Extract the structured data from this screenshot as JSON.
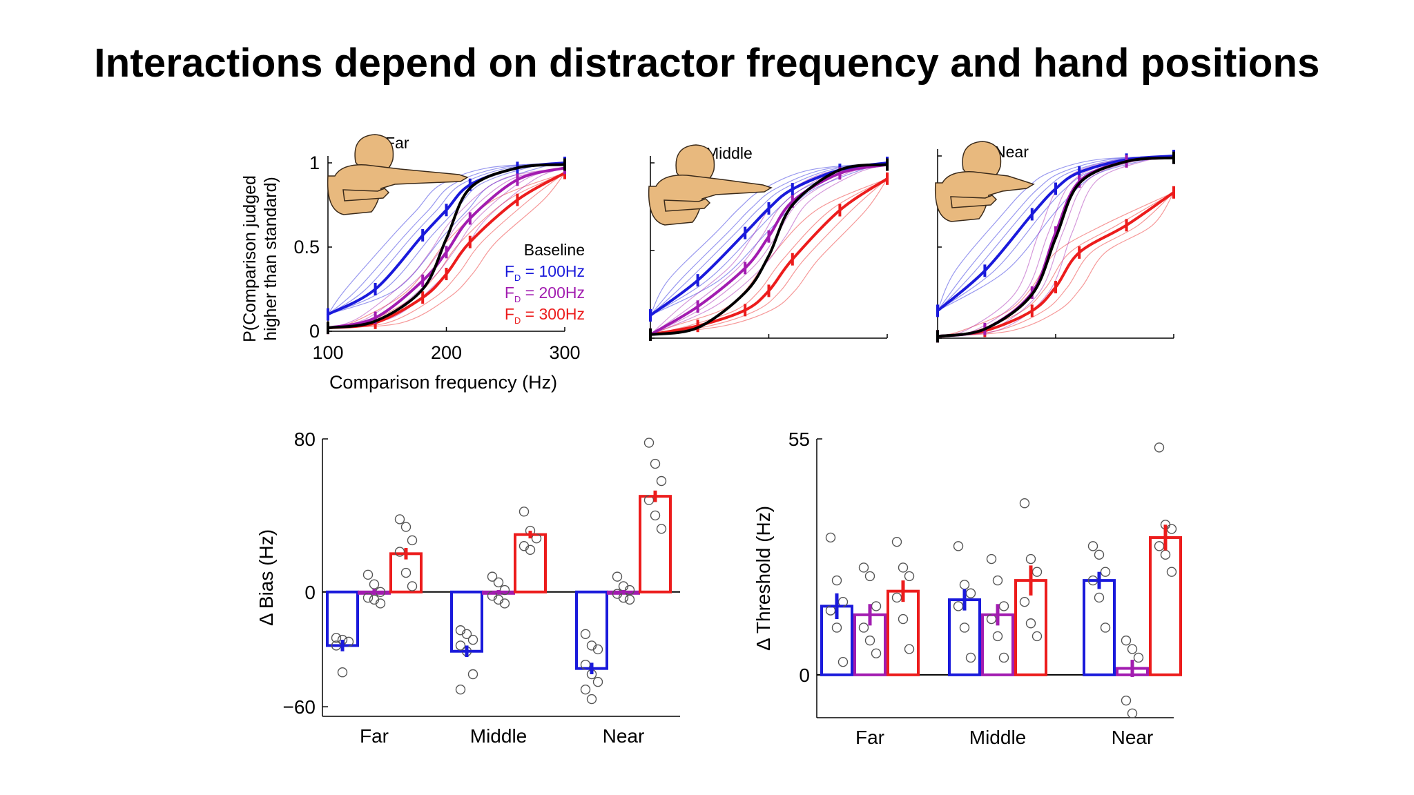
{
  "slide": {
    "title": "Interactions depend on distractor frequency and hand positions"
  },
  "colors": {
    "baseline": "#000000",
    "fd100": "#1a1adb",
    "fd200": "#a21cb0",
    "fd300": "#ec1c1c",
    "hand_skin": "#e8b97e"
  },
  "chart_data": [
    {
      "type": "line",
      "panel": "Far",
      "panel_label": "Far",
      "xlabel": "Comparison frequency (Hz)",
      "ylabel": "P(Comparison judged higher than standard)",
      "xlim": [
        100,
        300
      ],
      "ylim": [
        0,
        1
      ],
      "xticks": [
        100,
        200,
        300
      ],
      "yticks": [
        0,
        0.5,
        1
      ],
      "xtick_labels": [
        "100",
        "200",
        "300"
      ],
      "ytick_labels": [
        "0",
        "0.5",
        "1"
      ],
      "legend": {
        "placement": "right",
        "entries": [
          "Baseline",
          "F_D = 100Hz",
          "F_D = 200Hz",
          "F_D = 300Hz"
        ]
      },
      "x": [
        100,
        140,
        180,
        200,
        220,
        260,
        300
      ],
      "series": [
        {
          "name": "Baseline",
          "key": "baseline",
          "values": [
            0.02,
            0.06,
            0.25,
            0.55,
            0.85,
            0.97,
            0.99
          ]
        },
        {
          "name": "F_D = 100Hz",
          "key": "fd100",
          "values": [
            0.1,
            0.25,
            0.57,
            0.72,
            0.87,
            0.97,
            1.0
          ]
        },
        {
          "name": "F_D = 200Hz",
          "key": "fd200",
          "values": [
            0.02,
            0.08,
            0.3,
            0.47,
            0.67,
            0.9,
            0.97
          ]
        },
        {
          "name": "F_D = 300Hz",
          "key": "fd300",
          "values": [
            0.02,
            0.05,
            0.2,
            0.34,
            0.53,
            0.78,
            0.94
          ]
        }
      ]
    },
    {
      "type": "line",
      "panel": "Middle",
      "panel_label": "Middle",
      "xlim": [
        100,
        300
      ],
      "ylim": [
        0,
        1
      ],
      "x": [
        100,
        140,
        180,
        200,
        220,
        260,
        300
      ],
      "series": [
        {
          "name": "Baseline",
          "key": "baseline",
          "values": [
            0.02,
            0.06,
            0.26,
            0.47,
            0.76,
            0.96,
            0.99
          ]
        },
        {
          "name": "F_D = 100Hz",
          "key": "fd100",
          "values": [
            0.13,
            0.33,
            0.6,
            0.74,
            0.85,
            0.96,
            1.0
          ]
        },
        {
          "name": "F_D = 200Hz",
          "key": "fd200",
          "values": [
            0.02,
            0.18,
            0.4,
            0.58,
            0.78,
            0.94,
            0.99
          ]
        },
        {
          "name": "F_D = 300Hz",
          "key": "fd300",
          "values": [
            0.02,
            0.07,
            0.16,
            0.27,
            0.45,
            0.73,
            0.91
          ]
        }
      ]
    },
    {
      "type": "line",
      "panel": "Near",
      "panel_label": "Near",
      "xlim": [
        100,
        300
      ],
      "ylim": [
        0,
        1
      ],
      "x": [
        100,
        140,
        180,
        200,
        220,
        260,
        300
      ],
      "series": [
        {
          "name": "Baseline",
          "key": "baseline",
          "values": [
            0.01,
            0.05,
            0.24,
            0.55,
            0.85,
            0.97,
            0.99
          ]
        },
        {
          "name": "F_D = 100Hz",
          "key": "fd100",
          "values": [
            0.15,
            0.37,
            0.68,
            0.82,
            0.91,
            0.98,
            1.0
          ]
        },
        {
          "name": "F_D = 200Hz",
          "key": "fd200",
          "values": [
            0.01,
            0.05,
            0.25,
            0.58,
            0.86,
            0.97,
            0.99
          ]
        },
        {
          "name": "F_D = 300Hz",
          "key": "fd300",
          "values": [
            0.01,
            0.04,
            0.15,
            0.28,
            0.47,
            0.62,
            0.8
          ]
        }
      ]
    },
    {
      "type": "bar",
      "ylabel": "Δ Bias (Hz)",
      "ylim": [
        -65,
        80
      ],
      "yticks": [
        -60,
        0,
        80
      ],
      "ytick_labels": [
        "−60",
        "0",
        "80"
      ],
      "categories": [
        "Far",
        "Middle",
        "Near"
      ],
      "series": [
        {
          "name": "F_D = 100Hz",
          "key": "fd100",
          "values": [
            -28,
            -31,
            -40
          ],
          "errors": [
            3,
            3,
            3
          ],
          "points": [
            [
              -24,
              -25,
              -26,
              -28,
              -42
            ],
            [
              -20,
              -22,
              -25,
              -28,
              -31,
              -43,
              -51
            ],
            [
              -22,
              -28,
              -30,
              -38,
              -43,
              -47,
              -51,
              -56
            ]
          ]
        },
        {
          "name": "F_D = 200Hz",
          "key": "fd200",
          "values": [
            0,
            0,
            0
          ],
          "errors": [
            1.5,
            1,
            1
          ],
          "points": [
            [
              9,
              4,
              0,
              -3,
              -4,
              -6
            ],
            [
              8,
              5,
              1,
              -2,
              -4,
              -6
            ],
            [
              8,
              3,
              1,
              -1,
              -3,
              -4
            ]
          ]
        },
        {
          "name": "F_D = 300Hz",
          "key": "fd300",
          "values": [
            20,
            30,
            50
          ],
          "errors": [
            3,
            2,
            3
          ],
          "points": [
            [
              38,
              34,
              27,
              21,
              10,
              3
            ],
            [
              42,
              32,
              28,
              24,
              22
            ],
            [
              78,
              67,
              58,
              48,
              40,
              33
            ]
          ]
        }
      ]
    },
    {
      "type": "bar",
      "ylabel": "Δ Threshold (Hz)",
      "ylim": [
        -10,
        55
      ],
      "yticks": [
        0,
        55
      ],
      "ytick_labels": [
        "0",
        "55"
      ],
      "categories": [
        "Far",
        "Middle",
        "Near"
      ],
      "series": [
        {
          "name": "F_D = 100Hz",
          "key": "fd100",
          "values": [
            16,
            17.5,
            22
          ],
          "errors": [
            3,
            2.5,
            2
          ],
          "points": [
            [
              32,
              22,
              17,
              15,
              11,
              3
            ],
            [
              30,
              21,
              19,
              16,
              11,
              4
            ],
            [
              30,
              28,
              24,
              22,
              18,
              11
            ]
          ]
        },
        {
          "name": "F_D = 200Hz",
          "key": "fd200",
          "values": [
            14,
            14,
            1.5
          ],
          "errors": [
            2.5,
            2.5,
            2
          ],
          "points": [
            [
              25,
              23,
              16,
              11,
              8,
              5
            ],
            [
              27,
              22,
              16,
              13,
              9,
              4
            ],
            [
              8,
              6,
              4,
              -6,
              -9
            ]
          ]
        },
        {
          "name": "F_D = 300Hz",
          "key": "fd300",
          "values": [
            19.5,
            22,
            32
          ],
          "errors": [
            2.5,
            3.5,
            3
          ],
          "points": [
            [
              31,
              25,
              23,
              18,
              13,
              6
            ],
            [
              40,
              27,
              24,
              17,
              12,
              9
            ],
            [
              53,
              35,
              34,
              30,
              28,
              24
            ]
          ]
        }
      ]
    }
  ]
}
